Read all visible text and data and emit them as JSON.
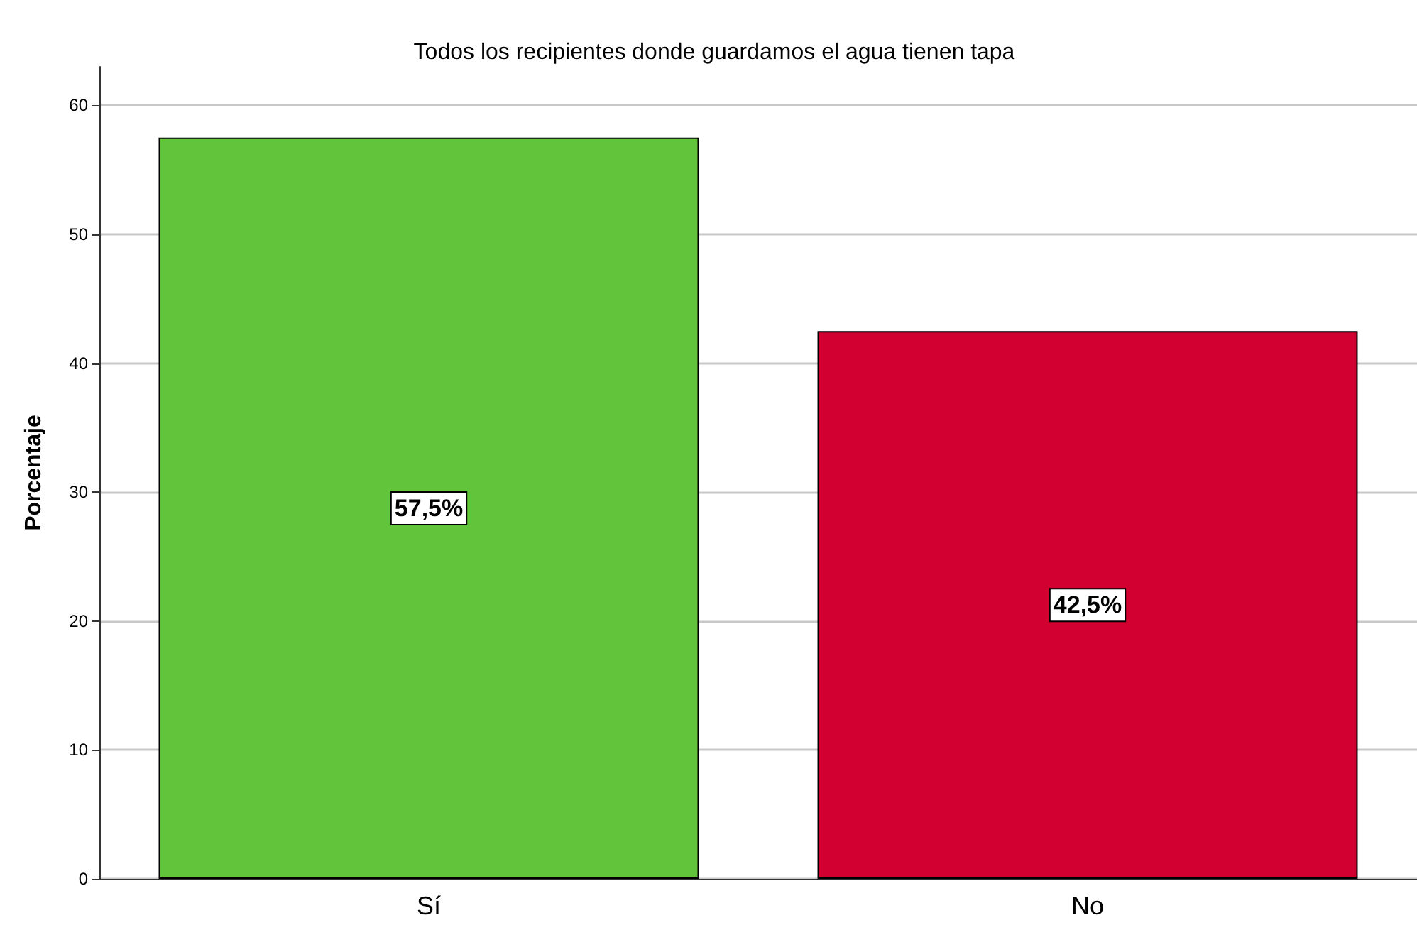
{
  "chart_data": {
    "type": "bar",
    "title": "Todos los recipientes donde guardamos el agua tienen tapa",
    "ylabel": "Porcentaje",
    "categories": [
      "Sí",
      "No"
    ],
    "values": [
      57.5,
      42.5
    ],
    "colors": [
      "#62c43b",
      "#d20030"
    ],
    "value_labels": [
      "57,5%",
      "42,5%"
    ],
    "ylim": [
      0,
      63
    ],
    "yticks": [
      0,
      10,
      20,
      30,
      40,
      50,
      60
    ],
    "grid": "y"
  }
}
